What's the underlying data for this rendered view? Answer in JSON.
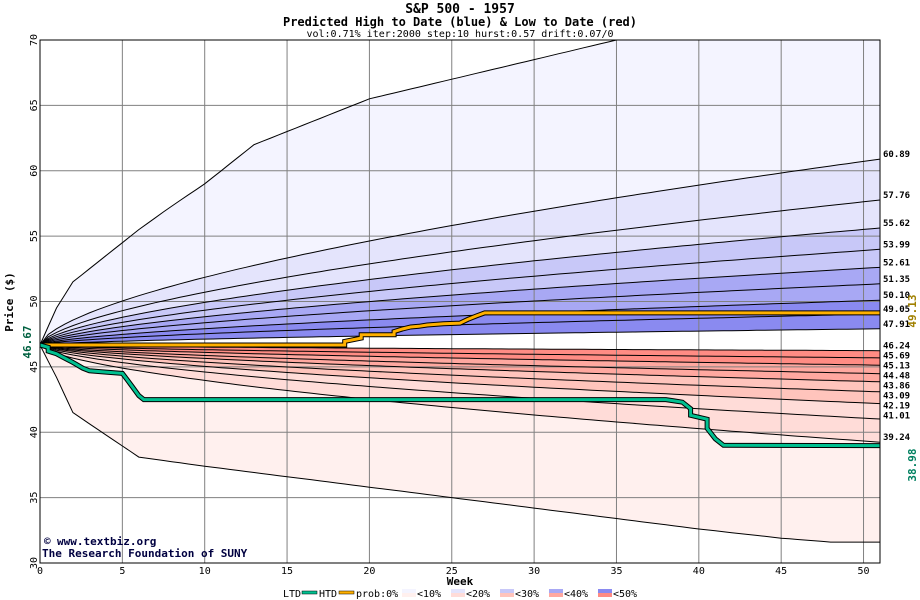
{
  "header": {
    "title": "S&P 500 - 1957",
    "subtitle": "Predicted High to Date (blue) &  Low to Date (red)",
    "params": "vol:0.71% iter:2000 step:10 hurst:0.57 drift:0.07/0"
  },
  "credit": {
    "site": "www.textbiz.org",
    "org": "The Research Foundation of SUNY"
  },
  "colors": {
    "htd_line": "#ffb000",
    "ltd_line": "#00c090",
    "htd_label": "#a08000",
    "ltd_label": "#008060",
    "start_label": "#006040",
    "band_lt10": "#f4f4ff",
    "band_lt20": "#e4e4fc",
    "band_lt30": "#c8c8f8",
    "band_lt40": "#a8a8f4",
    "band_lt50": "#8a8af0",
    "red_lt10": "#fff0ee",
    "red_lt20": "#ffdcd8",
    "red_lt30": "#ffc4bc",
    "red_lt40": "#ffa8a0",
    "red_lt50": "#ff8c84"
  },
  "legend": {
    "ltd": "LTD",
    "htd": "HTD",
    "prob": "prob:0%",
    "b10": "<10%",
    "b20": "<20%",
    "b30": "<30%",
    "b40": "<40%",
    "b50": "<50%"
  },
  "chart_data": {
    "type": "area",
    "title": "S&P 500 - 1957",
    "xlabel": "Week",
    "ylabel": "Price ($)",
    "xlim": [
      0,
      51
    ],
    "ylim": [
      30,
      70
    ],
    "xticks": [
      0,
      5,
      10,
      15,
      20,
      25,
      30,
      35,
      40,
      45,
      50
    ],
    "yticks": [
      30,
      35,
      40,
      45,
      50,
      55,
      60,
      65,
      70
    ],
    "grid": true,
    "start_value_label": "46.67",
    "start_value": 46.67,
    "high_percentile_curves": [
      {
        "end_label": "60.89",
        "end": 60.89
      },
      {
        "end_label": "57.76",
        "end": 57.76
      },
      {
        "end_label": "55.62",
        "end": 55.62
      },
      {
        "end_label": "53.99",
        "end": 53.99
      },
      {
        "end_label": "52.61",
        "end": 52.61
      },
      {
        "end_label": "51.35",
        "end": 51.35
      },
      {
        "end_label": "50.10",
        "end": 50.1
      },
      {
        "end_label": "49.05",
        "end": 49.05
      },
      {
        "end_label": "47.91",
        "end": 47.91
      }
    ],
    "low_percentile_curves": [
      {
        "end_label": "46.24",
        "end": 46.24
      },
      {
        "end_label": "45.69",
        "end": 45.69
      },
      {
        "end_label": "45.13",
        "end": 45.13
      },
      {
        "end_label": "44.48",
        "end": 44.48
      },
      {
        "end_label": "43.86",
        "end": 43.86
      },
      {
        "end_label": "43.09",
        "end": 43.09
      },
      {
        "end_label": "42.19",
        "end": 42.19
      },
      {
        "end_label": "41.01",
        "end": 41.01
      },
      {
        "end_label": "39.24",
        "end": 39.24
      }
    ],
    "outer_high": {
      "x": [
        0,
        1,
        2,
        4,
        6,
        8,
        10,
        13,
        15,
        18,
        20,
        25,
        30,
        35,
        51
      ],
      "y": [
        46.67,
        49.5,
        51.5,
        53.5,
        55.5,
        57.3,
        59,
        62,
        63,
        64.5,
        65.5,
        67,
        68.5,
        70,
        70
      ]
    },
    "outer_low": {
      "x": [
        0,
        1,
        2,
        4,
        6,
        10,
        15,
        20,
        25,
        30,
        35,
        40,
        45,
        48,
        50
      ],
      "y": [
        46.67,
        44.2,
        41.5,
        39.8,
        38.1,
        37.4,
        36.6,
        35.8,
        35,
        34.2,
        33.4,
        32.6,
        31.9,
        31.6,
        31.6
      ]
    },
    "htd_end_label": "49.13",
    "ltd_end_label": "38.98",
    "htd_series": {
      "name": "HTD",
      "x": [
        0,
        18.5,
        18.5,
        19.5,
        19.5,
        21.5,
        21.5,
        22,
        22.5,
        23,
        23.5,
        24,
        24.5,
        25.5,
        26,
        26.5,
        27,
        47,
        51
      ],
      "y": [
        46.67,
        46.67,
        46.95,
        47.2,
        47.45,
        47.45,
        47.7,
        47.9,
        48.05,
        48.1,
        48.2,
        48.25,
        48.3,
        48.35,
        48.65,
        48.9,
        49.13,
        49.13,
        49.13
      ]
    },
    "ltd_series": {
      "name": "LTD",
      "x": [
        0,
        0.5,
        0.5,
        1,
        1.3,
        1.6,
        1.9,
        2.2,
        2.6,
        3,
        4,
        5,
        5.3,
        5.6,
        6,
        6.3,
        38,
        38.5,
        39,
        39.5,
        39.5,
        40.5,
        40.5,
        41,
        41.5,
        51
      ],
      "y": [
        46.67,
        46.5,
        46.2,
        46,
        45.8,
        45.6,
        45.4,
        45.2,
        44.9,
        44.7,
        44.6,
        44.5,
        44,
        43.5,
        42.8,
        42.5,
        42.5,
        42.4,
        42.3,
        41.8,
        41.3,
        41,
        40.3,
        39.5,
        39,
        38.98
      ]
    }
  }
}
